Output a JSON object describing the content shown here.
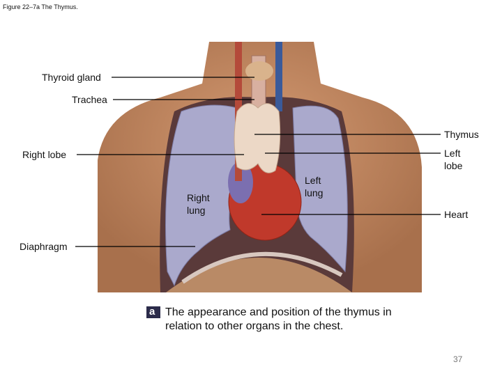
{
  "header": {
    "title": "Figure 22–7a The Thymus."
  },
  "labels": {
    "thyroid_gland": "Thyroid gland",
    "trachea": "Trachea",
    "thymus": "Thymus",
    "right_lobe": "Right lobe",
    "left_lobe": "Left lobe",
    "left_lung": "Left lung",
    "right_lung": "Right lung",
    "heart": "Heart",
    "diaphragm": "Diaphragm"
  },
  "caption": {
    "letter": "a",
    "text": "The appearance and position of the thymus in relation to other organs in the chest."
  },
  "footer": {
    "page_number": "37"
  }
}
